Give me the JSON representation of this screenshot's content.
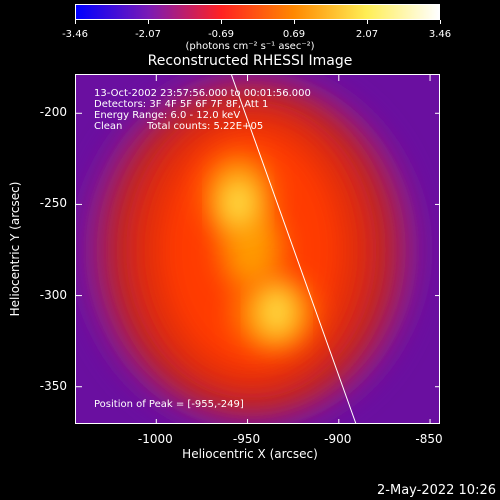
{
  "colorbar": {
    "ticks": [
      "-3.46",
      "-2.07",
      "-0.69",
      "0.69",
      "2.07",
      "3.46"
    ],
    "units": "(photons cm⁻² s⁻¹ asec⁻²)"
  },
  "plot": {
    "title": "Reconstructed RHESSI Image",
    "info_lines": [
      "13-Oct-2002 23:57:56.000 to 00:01:56.000",
      "Detectors: 3F 4F 5F 6F 7F 8F, Att 1",
      "Energy Range: 6.0 - 12.0 keV"
    ],
    "clean_label": "Clean",
    "total_counts": "Total counts: 5.22E+05",
    "peak_position": "Position of Peak = [-955,-249]"
  },
  "chart_data": {
    "type": "heatmap",
    "title": "Reconstructed RHESSI Image",
    "xlabel": "Heliocentric X (arcsec)",
    "ylabel": "Heliocentric Y (arcsec)",
    "xlim": [
      -1044,
      -844
    ],
    "ylim": [
      -371,
      -179
    ],
    "xticks": [
      "-1000",
      "-950",
      "-900",
      "-850"
    ],
    "xtick_values": [
      -1000,
      -950,
      -900,
      -850
    ],
    "yticks": [
      "-200",
      "-250",
      "-300",
      "-350"
    ],
    "ytick_values": [
      -200,
      -250,
      -300,
      -350
    ],
    "colorbar_range": [
      -3.46,
      3.46
    ],
    "peak": [
      -955,
      -249
    ],
    "sources": [
      {
        "x": -955,
        "y": -249,
        "relative_intensity": 1.0
      },
      {
        "x": -934,
        "y": -309,
        "relative_intensity": 0.97
      }
    ],
    "colormap": [
      "#0000ff",
      "#7a1ab5",
      "#ff2222",
      "#ff8800",
      "#ffee55",
      "#ffffff"
    ]
  },
  "footer": {
    "timestamp": "2-May-2022 10:26"
  }
}
